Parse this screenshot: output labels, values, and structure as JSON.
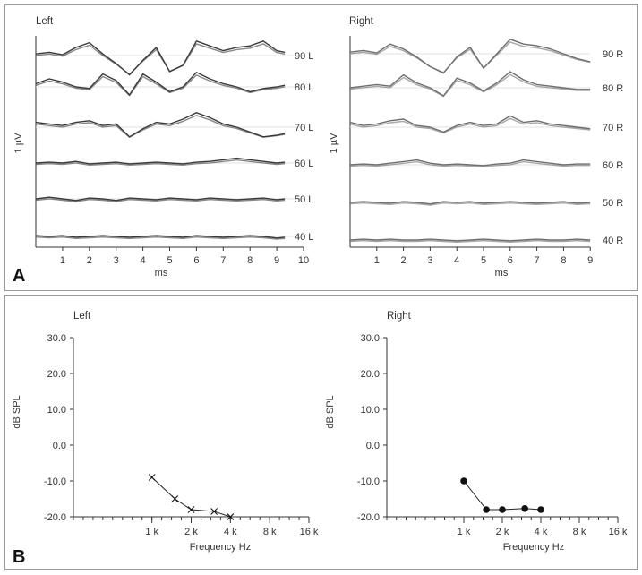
{
  "colors": {
    "left_trace": "#3a3a3a",
    "right_trace": "#6e6e6e",
    "marker": "#111111"
  },
  "panel_a": {
    "letter": "A",
    "left": {
      "title": "Left",
      "ylabel": "1 µV",
      "xlabel": "ms",
      "x_ticks": [
        "1",
        "2",
        "3",
        "4",
        "5",
        "6",
        "7",
        "8",
        "9",
        "10"
      ],
      "trace_labels": [
        "90 L",
        "80 L",
        "70 L",
        "60 L",
        "50 L",
        "40 L"
      ]
    },
    "right": {
      "title": "Right",
      "ylabel": "1 µV",
      "xlabel": "ms",
      "x_ticks": [
        "1",
        "2",
        "3",
        "4",
        "5",
        "6",
        "7",
        "8",
        "9"
      ],
      "trace_labels": [
        "90 R",
        "80 R",
        "70 R",
        "60 R",
        "50 R",
        "40 R"
      ]
    }
  },
  "panel_b": {
    "letter": "B"
  },
  "chart_data": [
    {
      "type": "line",
      "title": "Left",
      "xlabel": "ms",
      "ylabel": "1 µV",
      "xlim": [
        0,
        10
      ],
      "series": [
        {
          "name": "90 L",
          "x": [
            0,
            0.5,
            1,
            1.5,
            2,
            2.5,
            3,
            3.5,
            4,
            4.5,
            5,
            5.5,
            6,
            6.5,
            7,
            7.5,
            8,
            8.5,
            9,
            9.3
          ],
          "values": [
            0.1,
            0.2,
            0.05,
            0.5,
            0.8,
            0.1,
            -0.5,
            -1.2,
            -0.3,
            0.5,
            -1.0,
            -0.6,
            0.9,
            0.6,
            0.3,
            0.5,
            0.6,
            0.9,
            0.3,
            0.2
          ]
        },
        {
          "name": "80 L",
          "x": [
            0,
            0.5,
            1,
            1.5,
            2,
            2.5,
            3,
            3.5,
            4,
            4.5,
            5,
            5.5,
            6,
            6.5,
            7,
            7.5,
            8,
            8.5,
            9,
            9.3
          ],
          "values": [
            0.2,
            0.5,
            0.3,
            0.0,
            -0.1,
            0.8,
            0.4,
            -0.5,
            0.8,
            0.3,
            -0.3,
            0.0,
            0.9,
            0.5,
            0.2,
            0.0,
            -0.3,
            -0.1,
            0.0,
            0.1
          ]
        },
        {
          "name": "70 L",
          "x": [
            0,
            0.5,
            1,
            1.5,
            2,
            2.5,
            3,
            3.5,
            4,
            4.5,
            5,
            5.5,
            6,
            6.5,
            7,
            7.5,
            8,
            8.5,
            9,
            9.3
          ],
          "values": [
            0.3,
            0.2,
            0.1,
            0.3,
            0.4,
            0.1,
            0.2,
            -0.6,
            -0.1,
            0.3,
            0.2,
            0.5,
            0.9,
            0.6,
            0.2,
            0.0,
            -0.3,
            -0.6,
            -0.5,
            -0.4
          ]
        },
        {
          "name": "60 L",
          "x": [
            0,
            0.5,
            1,
            1.5,
            2,
            2.5,
            3,
            3.5,
            4,
            4.5,
            5,
            5.5,
            6,
            6.5,
            7,
            7.5,
            8,
            8.5,
            9,
            9.3
          ],
          "values": [
            0.0,
            0.05,
            0.0,
            0.1,
            -0.05,
            0.0,
            0.05,
            -0.05,
            0.0,
            0.05,
            0.0,
            -0.05,
            0.05,
            0.1,
            0.2,
            0.3,
            0.2,
            0.1,
            0.0,
            0.05
          ]
        },
        {
          "name": "50 L",
          "x": [
            0,
            0.5,
            1,
            1.5,
            2,
            2.5,
            3,
            3.5,
            4,
            4.5,
            5,
            5.5,
            6,
            6.5,
            7,
            7.5,
            8,
            8.5,
            9,
            9.3
          ],
          "values": [
            0.0,
            0.1,
            0.0,
            -0.1,
            0.05,
            0.0,
            -0.1,
            0.05,
            0.0,
            -0.05,
            0.05,
            0.0,
            -0.05,
            0.05,
            0.0,
            -0.05,
            0.0,
            0.05,
            -0.05,
            0.0
          ]
        },
        {
          "name": "40 L",
          "x": [
            0,
            0.5,
            1,
            1.5,
            2,
            2.5,
            3,
            3.5,
            4,
            4.5,
            5,
            5.5,
            6,
            6.5,
            7,
            7.5,
            8,
            8.5,
            9,
            9.3
          ],
          "values": [
            0.05,
            0.0,
            0.05,
            -0.05,
            0.0,
            0.05,
            0.0,
            -0.05,
            0.0,
            0.05,
            0.0,
            -0.05,
            0.05,
            0.0,
            -0.05,
            0.0,
            0.05,
            0.0,
            -0.1,
            -0.05
          ]
        }
      ]
    },
    {
      "type": "line",
      "title": "Right",
      "xlabel": "ms",
      "ylabel": "1 µV",
      "xlim": [
        0,
        9
      ],
      "series": [
        {
          "name": "90 R",
          "x": [
            0,
            0.5,
            1,
            1.5,
            2,
            2.5,
            3,
            3.5,
            4,
            4.5,
            5,
            5.5,
            6,
            6.5,
            7,
            7.5,
            8,
            8.5,
            9
          ],
          "values": [
            0.1,
            0.2,
            0.05,
            0.6,
            0.3,
            -0.2,
            -0.8,
            -1.2,
            -0.2,
            0.4,
            -0.9,
            0.0,
            0.9,
            0.6,
            0.5,
            0.3,
            0.0,
            -0.3,
            -0.5
          ]
        },
        {
          "name": "80 R",
          "x": [
            0,
            0.5,
            1,
            1.5,
            2,
            2.5,
            3,
            3.5,
            4,
            4.5,
            5,
            5.5,
            6,
            6.5,
            7,
            7.5,
            8,
            8.5,
            9
          ],
          "values": [
            0.0,
            0.1,
            0.2,
            0.1,
            0.8,
            0.3,
            0.0,
            -0.5,
            0.6,
            0.3,
            -0.2,
            0.3,
            1.0,
            0.5,
            0.2,
            0.1,
            0.0,
            -0.1,
            -0.1
          ]
        },
        {
          "name": "70 R",
          "x": [
            0,
            0.5,
            1,
            1.5,
            2,
            2.5,
            3,
            3.5,
            4,
            4.5,
            5,
            5.5,
            6,
            6.5,
            7,
            7.5,
            8,
            8.5,
            9
          ],
          "values": [
            0.3,
            0.1,
            0.2,
            0.4,
            0.5,
            0.1,
            0.0,
            -0.3,
            0.1,
            0.3,
            0.1,
            0.2,
            0.7,
            0.3,
            0.4,
            0.2,
            0.1,
            0.0,
            -0.1
          ]
        },
        {
          "name": "60 R",
          "x": [
            0,
            0.5,
            1,
            1.5,
            2,
            2.5,
            3,
            3.5,
            4,
            4.5,
            5,
            5.5,
            6,
            6.5,
            7,
            7.5,
            8,
            8.5,
            9
          ],
          "values": [
            0.0,
            0.05,
            0.0,
            0.1,
            0.2,
            0.3,
            0.1,
            0.0,
            0.05,
            0.0,
            -0.05,
            0.05,
            0.1,
            0.3,
            0.2,
            0.1,
            0.0,
            0.05,
            0.05
          ]
        },
        {
          "name": "50 R",
          "x": [
            0,
            0.5,
            1,
            1.5,
            2,
            2.5,
            3,
            3.5,
            4,
            4.5,
            5,
            5.5,
            6,
            6.5,
            7,
            7.5,
            8,
            8.5,
            9
          ],
          "values": [
            0.0,
            0.05,
            0.0,
            -0.05,
            0.05,
            0.0,
            -0.1,
            0.05,
            0.0,
            0.05,
            -0.05,
            0.0,
            0.05,
            0.0,
            -0.05,
            0.0,
            0.05,
            -0.05,
            0.0
          ]
        },
        {
          "name": "40 R",
          "x": [
            0,
            0.5,
            1,
            1.5,
            2,
            2.5,
            3,
            3.5,
            4,
            4.5,
            5,
            5.5,
            6,
            6.5,
            7,
            7.5,
            8,
            8.5,
            9
          ],
          "values": [
            0.0,
            0.05,
            0.0,
            0.05,
            0.0,
            0.0,
            0.05,
            0.0,
            -0.05,
            0.0,
            0.05,
            0.0,
            -0.05,
            0.0,
            0.05,
            0.0,
            0.0,
            0.05,
            0.0
          ]
        }
      ]
    },
    {
      "type": "line",
      "title": "Left",
      "xlabel": "Frequency Hz",
      "ylabel": "dB SPL",
      "ylim": [
        -20,
        30
      ],
      "y_ticks": [
        "30.0",
        "20.0",
        "10.0",
        "0.0",
        "-10.0",
        "-20.0"
      ],
      "x_ticks": [
        "1 k",
        "2 k",
        "4 k",
        "8 k",
        "16 k"
      ],
      "x_log_range_hz": [
        250,
        16000
      ],
      "marker": "x",
      "x": [
        1000,
        1500,
        2000,
        3000,
        4000
      ],
      "values": [
        -9,
        -15,
        -18,
        -18.5,
        -20
      ]
    },
    {
      "type": "line",
      "title": "Right",
      "xlabel": "Frequency Hz",
      "ylabel": "dB SPL",
      "ylim": [
        -20,
        30
      ],
      "y_ticks": [
        "30.0",
        "20.0",
        "10.0",
        "0.0",
        "-10.0",
        "-20.0"
      ],
      "x_ticks": [
        "1 k",
        "2 k",
        "4 k",
        "8 k",
        "16 k"
      ],
      "x_log_range_hz": [
        250,
        16000
      ],
      "marker": "dot",
      "x": [
        1000,
        1500,
        2000,
        3000,
        4000
      ],
      "values": [
        -10,
        -18,
        -18,
        -17.7,
        -18
      ]
    }
  ]
}
